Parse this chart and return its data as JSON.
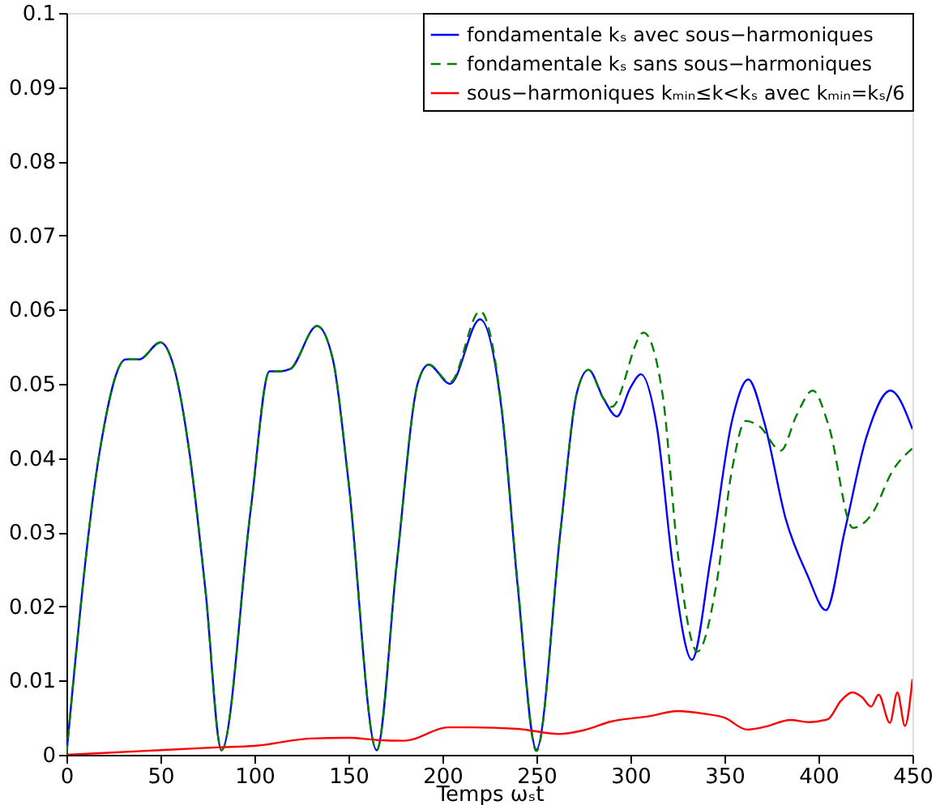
{
  "chart_data": {
    "type": "line",
    "xlabel": "Temps ωₛt",
    "xlim": [
      0,
      450
    ],
    "xticks": [
      0,
      50,
      100,
      150,
      200,
      250,
      300,
      350,
      400,
      450
    ],
    "ylim": [
      0,
      0.1
    ],
    "yticks": [
      0,
      0.01,
      0.02,
      0.03,
      0.04,
      0.05,
      0.06,
      0.07,
      0.08,
      0.09,
      0.1
    ],
    "grid": false,
    "legend": "top right",
    "marker": "none",
    "series": [
      {
        "name": "fondamentale kₛ avec sous−harmoniques",
        "color": "#0000ff",
        "line_style": "solid",
        "x": [
          0,
          17.5,
          31.6,
          38.7,
          50,
          57,
          65.5,
          74,
          82.5,
          98,
          108,
          113.6,
          119,
          133.3,
          141.8,
          150,
          165,
          175.7,
          187,
          192.7,
          204,
          220,
          231.5,
          240,
          250,
          262.8,
          271.4,
          277.7,
          285.7,
          292.8,
          300,
          305.6,
          314,
          322.8,
          332.7,
          342.7,
          354,
          362.7,
          371,
          382.7,
          394,
          404,
          414,
          425.5,
          438.3,
          450
        ],
        "values": [
          0,
          0.0406,
          0.0533,
          0.0533,
          0.0556,
          0.0524,
          0.0406,
          0.022,
          0.0006,
          0.033,
          0.0517,
          0.0517,
          0.052,
          0.0578,
          0.0532,
          0.0369,
          0.0006,
          0.0258,
          0.0502,
          0.0526,
          0.05,
          0.0587,
          0.0465,
          0.0228,
          0.0007,
          0.0302,
          0.0487,
          0.0519,
          0.048,
          0.0456,
          0.0495,
          0.0513,
          0.0443,
          0.025,
          0.0128,
          0.0265,
          0.045,
          0.0506,
          0.045,
          0.0317,
          0.0243,
          0.0195,
          0.0302,
          0.0428,
          0.0491,
          0.0439
        ]
      },
      {
        "name": "fondamentale kₛ sans sous−harmoniques",
        "color": "#008000",
        "line_style": "dashed",
        "x": [
          0,
          17.5,
          31.6,
          38.7,
          50,
          57,
          65.5,
          74,
          82.5,
          98,
          108,
          113.6,
          119,
          133.3,
          141.8,
          150,
          165,
          175.7,
          187,
          192.7,
          204,
          220,
          231.5,
          240,
          250,
          262.8,
          271.4,
          277.7,
          285.7,
          290,
          307,
          317,
          325.5,
          335.6,
          345.6,
          354,
          361.3,
          368.5,
          380,
          388.4,
          397,
          405.5,
          418.3,
          428.3,
          439.7,
          450
        ],
        "values": [
          0,
          0.0406,
          0.0533,
          0.0533,
          0.0556,
          0.0524,
          0.0406,
          0.022,
          0.0006,
          0.033,
          0.0517,
          0.0517,
          0.052,
          0.0578,
          0.0532,
          0.0369,
          0.0006,
          0.0258,
          0.0502,
          0.0526,
          0.0502,
          0.0598,
          0.0468,
          0.0232,
          0.0005,
          0.0302,
          0.0487,
          0.0519,
          0.048,
          0.0469,
          0.0569,
          0.0487,
          0.0265,
          0.0139,
          0.0228,
          0.0384,
          0.045,
          0.0443,
          0.041,
          0.0458,
          0.0491,
          0.0443,
          0.0306,
          0.0324,
          0.0384,
          0.0413
        ]
      },
      {
        "name": "sous−harmoniques kₘᵢₙ≤k<kₛ avec kₘᵢₙ=kₛ/6",
        "color": "#ff0000",
        "line_style": "solid",
        "x": [
          0,
          40,
          80,
          100,
          130,
          150,
          165,
          180,
          203,
          215,
          240,
          262,
          275,
          290,
          310,
          325,
          340,
          350,
          362,
          372,
          385,
          395,
          405,
          412,
          418,
          423,
          428,
          432,
          438,
          442,
          446,
          450
        ],
        "values": [
          0,
          0.0005,
          0.001,
          0.0012,
          0.0022,
          0.0023,
          0.002,
          0.0019,
          0.0037,
          0.0037,
          0.0035,
          0.0028,
          0.0033,
          0.0045,
          0.0052,
          0.0059,
          0.0055,
          0.005,
          0.0034,
          0.0038,
          0.0047,
          0.0044,
          0.0048,
          0.0073,
          0.0084,
          0.0078,
          0.0065,
          0.0081,
          0.0043,
          0.0084,
          0.0039,
          0.0102
        ]
      }
    ]
  }
}
